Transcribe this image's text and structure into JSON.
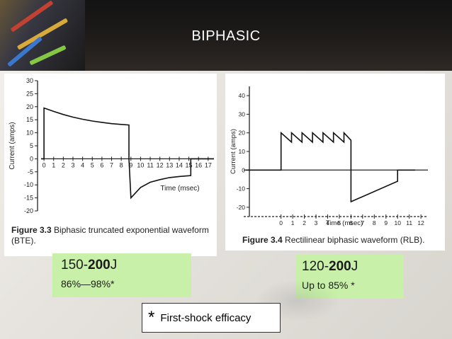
{
  "slide": {
    "title": "BIPHASIC",
    "accent_green": "#c8f0a8",
    "header_color": "#1a1a1a"
  },
  "left": {
    "figure_label": "Figure 3.3",
    "caption_line1": "Biphasic truncated exponential waveform",
    "caption_line2": "(BTE).",
    "energy_prefix": "150-",
    "energy_bold": "200",
    "energy_unit": "J",
    "efficacy": "86%—98%*"
  },
  "right": {
    "figure_label": "Figure 3.4",
    "caption": "Rectilinear biphasic waveform (RLB).",
    "energy_prefix": "120-",
    "energy_bold": "200",
    "energy_unit": "J",
    "efficacy": "Up to 85% *"
  },
  "footnote": {
    "star": "*",
    "text": "First-shock efficacy"
  },
  "chart_data": [
    {
      "type": "line",
      "ylabel": "Current (amps)",
      "xlabel": "Time (msec)",
      "xlim": [
        -0.3,
        17.6
      ],
      "ylim": [
        -20,
        30
      ],
      "y_ticks": [
        30,
        25,
        20,
        15,
        10,
        5,
        0,
        -5,
        -10,
        -15,
        -20
      ],
      "x_ticks": [
        0,
        1,
        2,
        3,
        4,
        5,
        6,
        7,
        8,
        9,
        10,
        11,
        12,
        13,
        14,
        15,
        16,
        17
      ],
      "grid": false,
      "series": [
        {
          "x": [
            -0.3,
            0,
            0,
            1,
            2,
            3,
            4,
            5,
            6,
            7,
            8,
            8.8,
            8.8,
            9,
            10,
            11,
            12,
            13,
            14,
            15,
            15.2,
            15.2,
            17.6
          ],
          "y": [
            0,
            0,
            19.5,
            18.2,
            17,
            16,
            15.2,
            14.5,
            14,
            13.5,
            13.2,
            13,
            0,
            -15,
            -11,
            -9,
            -8,
            -7.2,
            -6.8,
            -6.5,
            -6.4,
            0,
            0
          ]
        }
      ]
    },
    {
      "type": "line",
      "ylabel": "Current (amps)",
      "xlabel": "Time (msec)",
      "xlim": [
        -3.2,
        12.6
      ],
      "ylim": [
        -25,
        45
      ],
      "y_ticks": [
        40,
        30,
        20,
        10,
        0,
        -10,
        -20
      ],
      "x_ticks": [
        0,
        1,
        2,
        3,
        4,
        5,
        6,
        7,
        8,
        9,
        10,
        11,
        12
      ],
      "grid": false,
      "series": [
        {
          "x": [
            -3,
            0,
            0,
            0.9,
            0.9,
            1.8,
            1.8,
            2.7,
            2.7,
            3.6,
            3.6,
            4.5,
            4.5,
            5.4,
            5.4,
            6,
            6,
            10,
            10,
            11.5
          ],
          "y": [
            0,
            0,
            20,
            15,
            20,
            15,
            20,
            15,
            20,
            15,
            20,
            15,
            20,
            15,
            20,
            16,
            -17,
            -6,
            0,
            0
          ]
        }
      ]
    }
  ]
}
